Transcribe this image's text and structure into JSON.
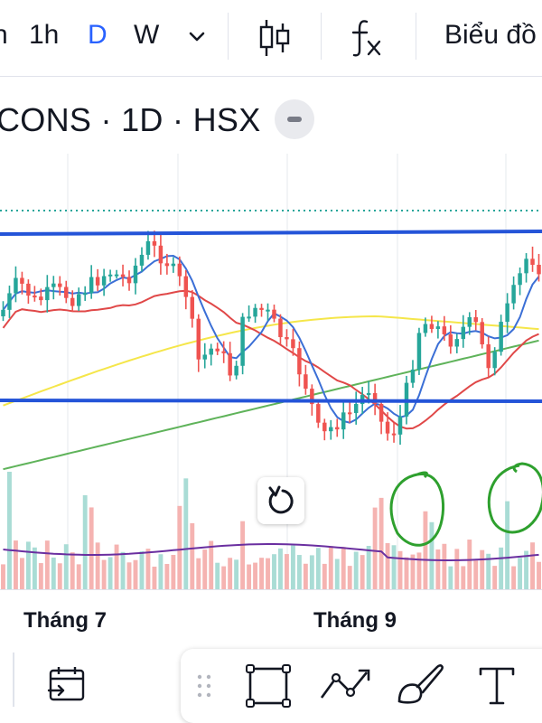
{
  "toolbar": {
    "intervals": [
      "h",
      "1h",
      "D",
      "W"
    ],
    "active_interval": "D",
    "interval_menu_icon": "chevron-down-icon",
    "chart_type_icon": "candles-icon",
    "indicators_icon": "fx-icon",
    "chart_button_label": "Biểu đồ"
  },
  "symbol": {
    "label": "CONS · 1D · HSX",
    "collapse_icon": "minus-icon"
  },
  "chart_area": {
    "reset_icon": "reset-icon",
    "annotations": [
      "green-hand-drawn-circle",
      "green-hand-drawn-circle"
    ],
    "drawn_lines": [
      "blue-horizontal-line",
      "blue-horizontal-line",
      "dotted-price-line"
    ]
  },
  "time_axis": {
    "labels": [
      "Tháng 7",
      "Tháng 9"
    ]
  },
  "bottom_toolbar": {
    "left_icon": "date-range-icon",
    "tools": [
      "rectangle-icon",
      "trend-line-icon",
      "brush-icon",
      "text-icon"
    ]
  },
  "colors": {
    "up": "#26a69a",
    "down": "#ef5350",
    "active": "#2962ff",
    "line_blue": "#2962ff",
    "ma_fast": "#3b6fd6",
    "ma_mid": "#e04848",
    "ma_slow_yellow": "#f5e64a",
    "ma_slow_green": "#5fb35a",
    "volume_ma": "#6a2fa0",
    "annotation": "#2ea02e"
  }
}
